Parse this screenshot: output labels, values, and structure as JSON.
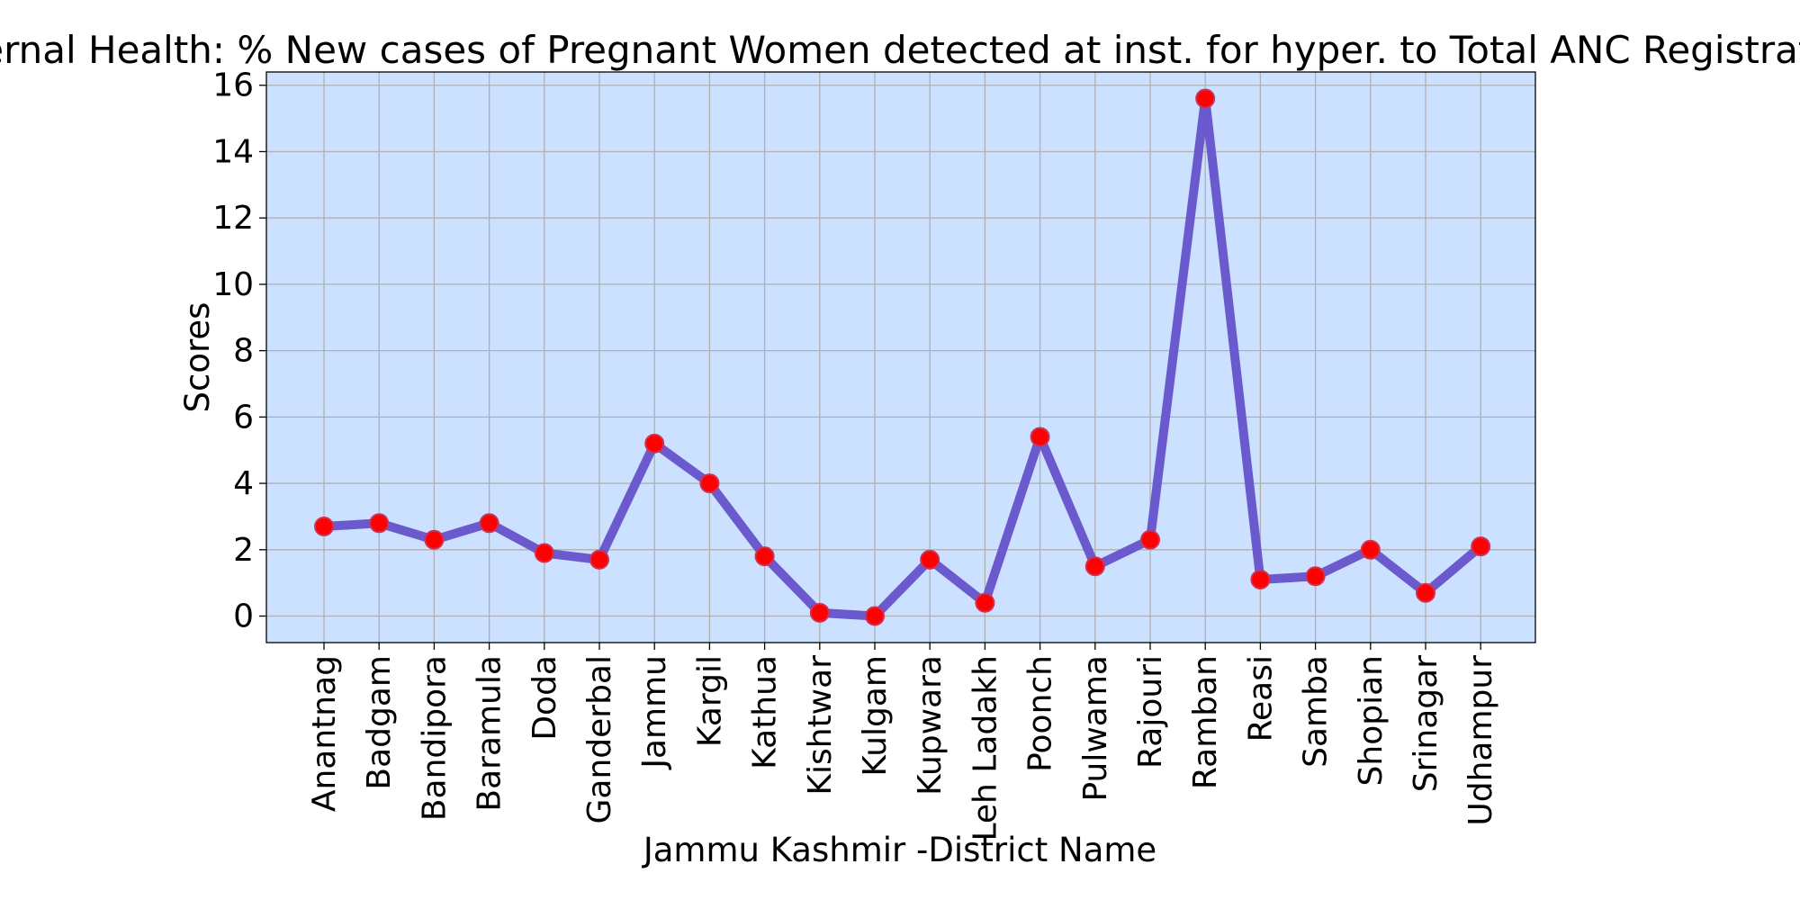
{
  "chart_data": {
    "type": "line",
    "title": "Maternal Health:  % New cases of Pregnant Women detected at inst. for hyper. to Total ANC Registrations",
    "xlabel": "Jammu Kashmir -District Name",
    "ylabel": "Scores",
    "ylim": [
      -0.8,
      16.4
    ],
    "yticks": [
      0,
      2,
      4,
      6,
      8,
      10,
      12,
      14,
      16
    ],
    "grid": true,
    "categories": [
      "Anantnag",
      "Badgam",
      "Bandipora",
      "Baramula",
      "Doda",
      "Ganderbal",
      "Jammu",
      "Kargil",
      "Kathua",
      "Kishtwar",
      "Kulgam",
      "Kupwara",
      "Leh Ladakh",
      "Poonch",
      "Pulwama",
      "Rajouri",
      "Ramban",
      "Reasi",
      "Samba",
      "Shopian",
      "Srinagar",
      "Udhampur"
    ],
    "series": [
      {
        "values": [
          2.7,
          2.8,
          2.3,
          2.8,
          1.9,
          1.7,
          5.2,
          4.0,
          1.8,
          0.1,
          0.0,
          1.7,
          0.4,
          5.4,
          1.5,
          2.3,
          15.6,
          1.1,
          1.2,
          2.0,
          0.7,
          2.1
        ]
      }
    ],
    "colors": {
      "plot_background": "#cce0ff",
      "line": "#6a5acd",
      "marker_fill": "#ff0000",
      "marker_edge": "#cc3355",
      "grid": "#b0b0b0"
    }
  }
}
